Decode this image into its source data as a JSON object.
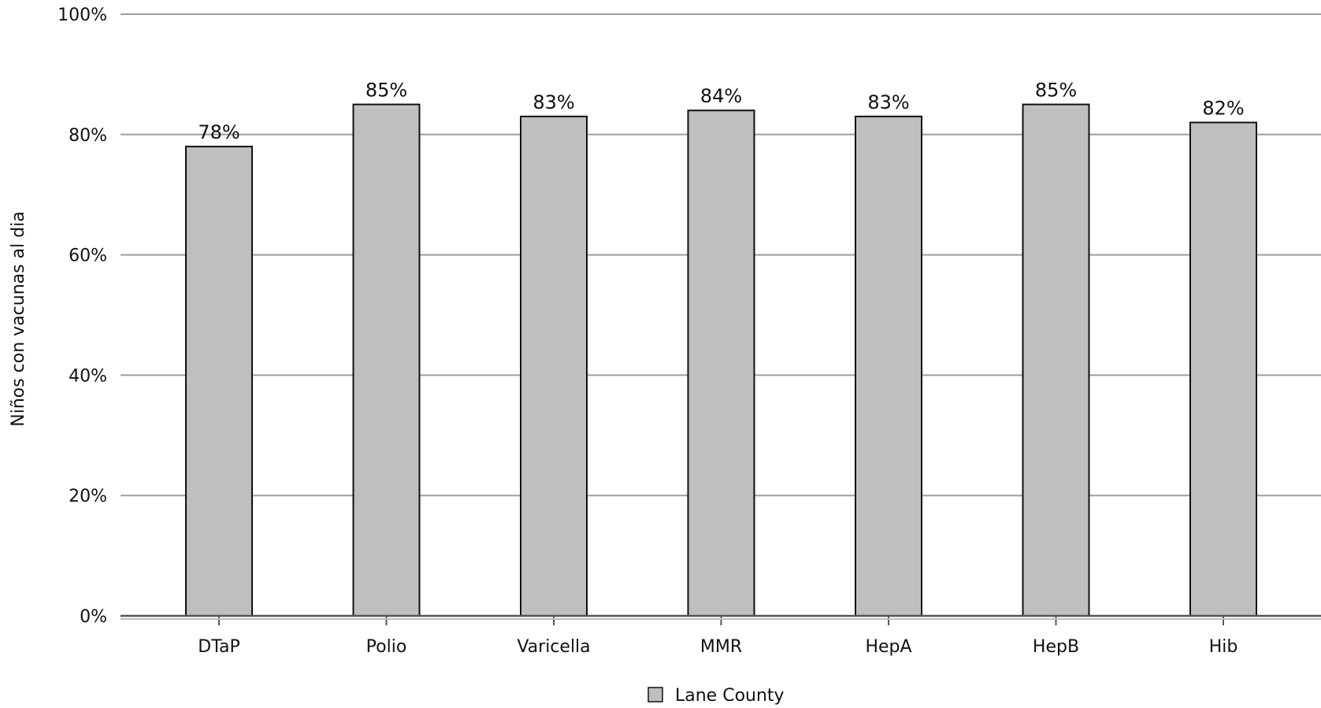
{
  "chart_data": {
    "type": "bar",
    "title": "",
    "xlabel": "",
    "ylabel": "Niños con vacunas al dia",
    "categories": [
      "DTaP",
      "Polio",
      "Varicella",
      "MMR",
      "HepA",
      "HepB",
      "Hib"
    ],
    "series": [
      {
        "name": "Lane County",
        "values": [
          78,
          85,
          83,
          84,
          83,
          85,
          82
        ],
        "labels": [
          "78%",
          "85%",
          "83%",
          "84%",
          "83%",
          "85%",
          "82%"
        ],
        "color": "#bfbfbf",
        "border_color": "#111111"
      }
    ],
    "ylim": [
      0,
      100
    ],
    "yticks": [
      0,
      20,
      40,
      60,
      80,
      100
    ],
    "ytick_labels": [
      "0%",
      "20%",
      "40%",
      "60%",
      "80%",
      "100%"
    ],
    "grid": true,
    "grid_color": "#9e9e9e",
    "legend": "bottom-center"
  }
}
